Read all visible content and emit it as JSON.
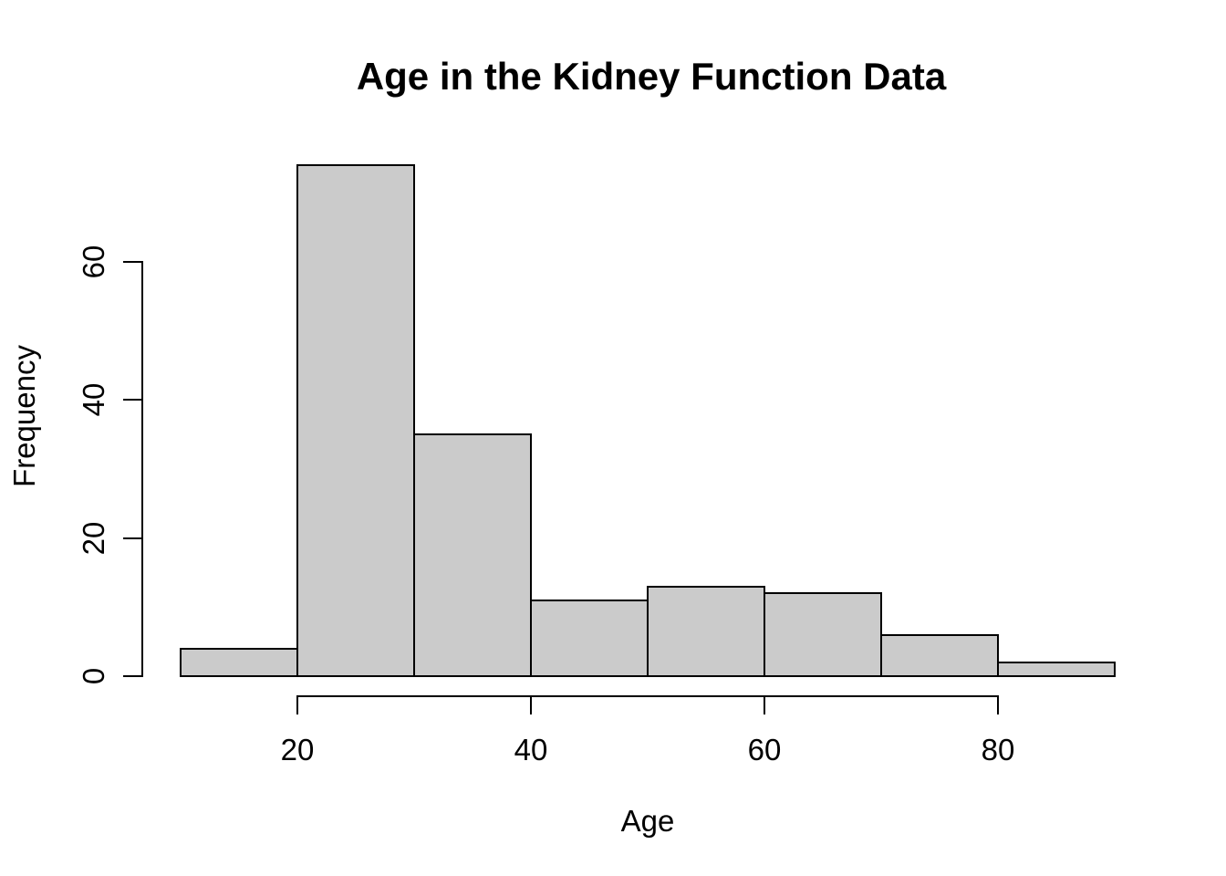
{
  "chart_data": {
    "type": "histogram",
    "title": "Age in the Kidney Function Data",
    "xlabel": "Age",
    "ylabel": "Frequency",
    "bin_edges": [
      10,
      20,
      30,
      40,
      50,
      60,
      70,
      80,
      90
    ],
    "counts": [
      4,
      74,
      35,
      11,
      13,
      12,
      6,
      2
    ],
    "x_ticks": [
      20,
      40,
      60,
      80
    ],
    "y_ticks": [
      0,
      20,
      40,
      60
    ],
    "xlim": [
      10,
      90
    ],
    "ylim": [
      0,
      74
    ],
    "grid": false,
    "legend": "none",
    "colors": {
      "bar_fill": "#cbcbcb",
      "bar_border": "#000000",
      "axis": "#000000",
      "text": "#000000",
      "background": "#ffffff"
    }
  }
}
